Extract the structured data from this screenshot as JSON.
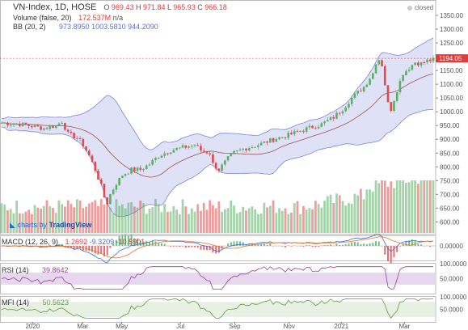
{
  "header": {
    "symbol": "VN-Index, 1D, HOSE",
    "o_label": "O",
    "o": "969.43",
    "h_label": "H",
    "h": "971.84",
    "l_label": "L",
    "l": "965.93",
    "c_label": "C",
    "c": "966.18",
    "volume_label": "Volume (false, 20)",
    "volume_value": "172.537M",
    "volume_ma": "n/a",
    "bb_label": "BB (20, 2)",
    "bb_mid": "973.8950",
    "bb_upper": "1003.5810",
    "bb_lower": "944.2090",
    "status": "closed"
  },
  "watermark": {
    "prefix": "charts by",
    "brand": "TradingView"
  },
  "macd": {
    "label": "MACD (12, 26, 9)",
    "v1": "1.2692",
    "v2": "-9.3209",
    "v3": "-10.5901"
  },
  "rsi": {
    "label": "RSI (14)",
    "value": "39.8642"
  },
  "mfi": {
    "label": "MFI (14)",
    "value": "50.5623"
  },
  "colors": {
    "up": "#5aaf63",
    "down": "#e04a4a",
    "bb_fill": "#c9cdf1",
    "bb_line": "#7d86d9",
    "mid": "#a0524f",
    "osc": "#9b3f9b",
    "mfi": "#5d9e3e",
    "pricetag": "#e23b3b"
  },
  "chart_data": {
    "type": "candlestick",
    "x_ticks": [
      "2020",
      "Mar",
      "May",
      "Jul",
      "Sep",
      "Nov",
      "2021",
      "Mar"
    ],
    "y_ticks": [
      "1400.00",
      "1350.00",
      "1300.00",
      "1250.00",
      "1200.00",
      "1150.00",
      "1100.00",
      "1050.00",
      "1000.00",
      "950.00",
      "900.00",
      "850.00",
      "800.00",
      "750.00",
      "700.00",
      "650.00",
      "600.00"
    ],
    "ylim": [
      560,
      1400
    ],
    "last_price": "1194.05",
    "price_path": [
      [
        0,
        960
      ],
      [
        6,
        955
      ],
      [
        10,
        948
      ],
      [
        14,
        940
      ],
      [
        18,
        950
      ],
      [
        20,
        965
      ],
      [
        22,
        920
      ],
      [
        25,
        905
      ],
      [
        27,
        880
      ],
      [
        29,
        840
      ],
      [
        31,
        790
      ],
      [
        33,
        730
      ],
      [
        34,
        690
      ],
      [
        35,
        670
      ],
      [
        36,
        700
      ],
      [
        38,
        740
      ],
      [
        40,
        770
      ],
      [
        43,
        790
      ],
      [
        46,
        790
      ],
      [
        49,
        810
      ],
      [
        52,
        840
      ],
      [
        56,
        860
      ],
      [
        60,
        870
      ],
      [
        64,
        880
      ],
      [
        66,
        860
      ],
      [
        69,
        850
      ],
      [
        70,
        810
      ],
      [
        72,
        790
      ],
      [
        75,
        830
      ],
      [
        77,
        850
      ],
      [
        80,
        865
      ],
      [
        85,
        880
      ],
      [
        90,
        900
      ],
      [
        95,
        915
      ],
      [
        100,
        935
      ],
      [
        106,
        955
      ],
      [
        110,
        980
      ],
      [
        113,
        1010
      ],
      [
        116,
        1050
      ],
      [
        120,
        1090
      ],
      [
        123,
        1140
      ],
      [
        124,
        1180
      ],
      [
        125,
        1190
      ],
      [
        126,
        1170
      ],
      [
        128,
        1030
      ],
      [
        129,
        1010
      ],
      [
        131,
        1080
      ],
      [
        133,
        1140
      ],
      [
        135,
        1160
      ],
      [
        137,
        1180
      ],
      [
        139,
        1175
      ],
      [
        141,
        1185
      ],
      [
        143,
        1188
      ]
    ],
    "volume": {
      "ylim": [
        0,
        900
      ],
      "max_bar": 780
    },
    "macd": {
      "ticks": [
        "0.00000"
      ],
      "ylim": [
        -60,
        40
      ]
    },
    "rsi": {
      "ticks": [
        "100.0000",
        "50.0000"
      ],
      "ylim": [
        0,
        100
      ],
      "bands": [
        30,
        70
      ]
    },
    "mfi": {
      "ticks": [
        "100.0000",
        "50.0000"
      ],
      "ylim": [
        0,
        100
      ],
      "bands": [
        20,
        80
      ]
    }
  }
}
